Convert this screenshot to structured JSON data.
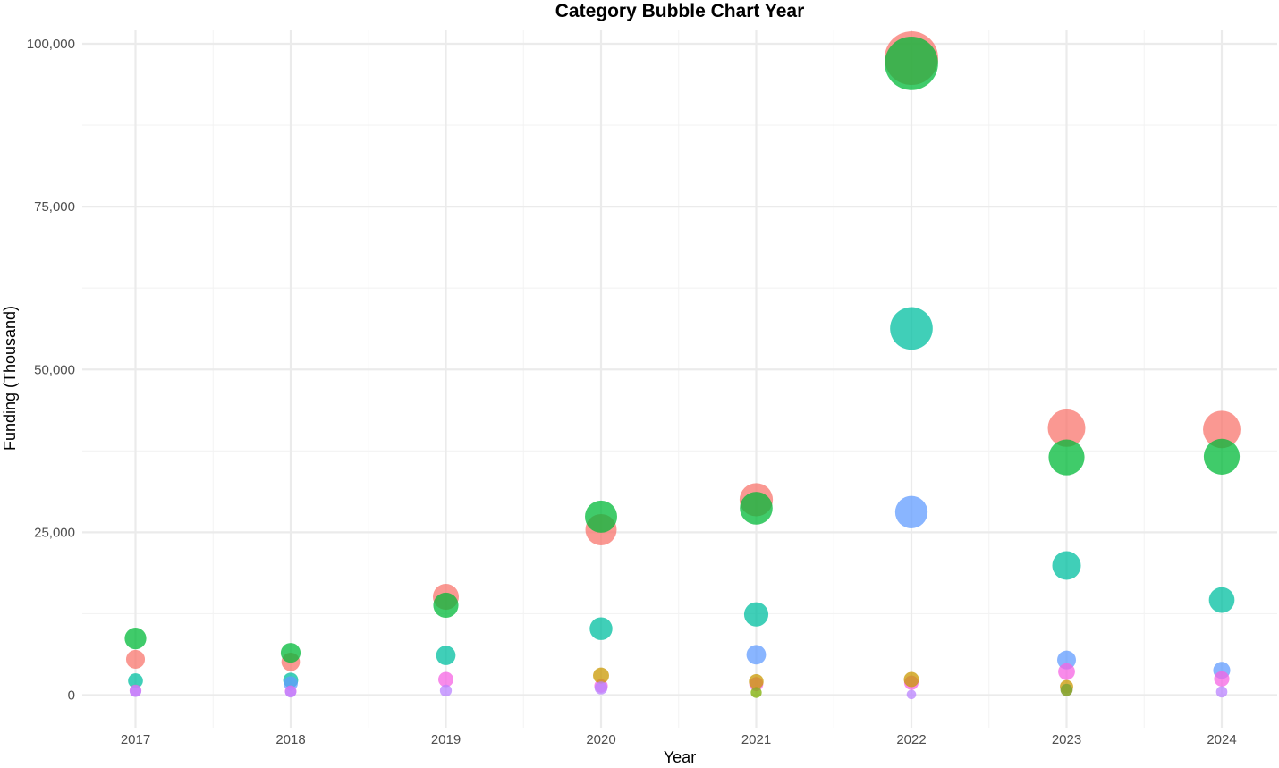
{
  "chart_data": {
    "type": "scatter",
    "title": "Category Bubble Chart Year",
    "xlabel": "Year",
    "ylabel": "Funding (Thousand)",
    "x_categories": [
      "2017",
      "2018",
      "2019",
      "2020",
      "2021",
      "2022",
      "2023",
      "2024"
    ],
    "yticks": [
      0,
      25000,
      50000,
      75000,
      100000
    ],
    "ytick_labels": [
      "0",
      "25,000",
      "50,000",
      "75,000",
      "100,000"
    ],
    "ylim": [
      -1500,
      103500
    ],
    "grid": true,
    "legend": "none",
    "bubble_size": "proportional to funding value",
    "series": [
      {
        "color": "#F8766D",
        "values": [
          5500,
          5100,
          15100,
          25400,
          30000,
          97800,
          41000,
          40800
        ]
      },
      {
        "color": "#00BA38",
        "values": [
          8700,
          6500,
          13800,
          27400,
          28700,
          97000,
          36500,
          36600
        ]
      },
      {
        "color": "#00BFA0",
        "values": [
          2200,
          2300,
          6100,
          10200,
          12400,
          56300,
          19900,
          14600
        ]
      },
      {
        "color": "#619CFF",
        "values": [
          null,
          1800,
          null,
          null,
          6200,
          28100,
          5400,
          3800
        ]
      },
      {
        "color": "#F564E3",
        "values": [
          700,
          600,
          2400,
          1400,
          1700,
          1900,
          3600,
          2500
        ]
      },
      {
        "color": "#C99800",
        "values": [
          null,
          null,
          null,
          3000,
          2100,
          2400,
          1300,
          null
        ]
      },
      {
        "color": "#B983FF",
        "values": [
          600,
          500,
          700,
          1100,
          null,
          100,
          800,
          500
        ]
      },
      {
        "color": "#7CAE00",
        "values": [
          null,
          null,
          null,
          null,
          400,
          null,
          800,
          null
        ]
      }
    ]
  }
}
